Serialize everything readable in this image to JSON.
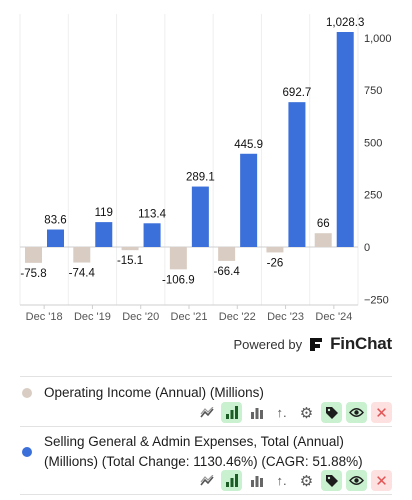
{
  "chart_data": {
    "type": "bar",
    "categories": [
      "Dec '18",
      "Dec '19",
      "Dec '20",
      "Dec '21",
      "Dec '22",
      "Dec '23",
      "Dec '24"
    ],
    "series": [
      {
        "name": "Operating Income (Annual) (Millions)",
        "color": "#d9cdc3",
        "values": [
          -75.8,
          -74.4,
          -15.1,
          -106.9,
          -66.4,
          -26,
          66
        ],
        "labels": [
          "-75.8",
          "-74.4",
          "-15.1",
          "-106.9",
          "-66.4",
          "-26",
          "66"
        ]
      },
      {
        "name": "Selling General & Admin Expenses, Total (Annual) (Millions)",
        "color": "#3b6fd9",
        "values": [
          83.6,
          119,
          113.4,
          289.1,
          445.9,
          692.7,
          1028.3
        ],
        "labels": [
          "83.6",
          "119",
          "113.4",
          "289.1",
          "445.9",
          "692.7",
          "1,028.3"
        ]
      }
    ],
    "y_ticks": [
      1000,
      750,
      500,
      250,
      0,
      -250
    ],
    "y_tick_labels": [
      "1,000",
      "750",
      "500",
      "250",
      "0",
      "−250"
    ],
    "ylim": [
      -250,
      1028.3
    ],
    "grid": "vertical",
    "y_axis_position": "right",
    "legend_placement": "bottom"
  },
  "branding": {
    "prefix": "Powered by",
    "name": "FinChat"
  },
  "legend": [
    {
      "text": "Operating Income (Annual) (Millions)",
      "color": "#d9cdc3"
    },
    {
      "text": "Selling General & Admin Expenses, Total (Annual) (Millions) (Total Change: 1130.46%) (CAGR: 51.88%)",
      "color": "#3b6fd9"
    }
  ],
  "legend_tools": [
    "trend-icon",
    "bar-chart-icon",
    "stacked-bars-icon",
    "sort-icon",
    "gear-icon",
    "tag-icon",
    "eye-icon",
    "close-icon"
  ]
}
